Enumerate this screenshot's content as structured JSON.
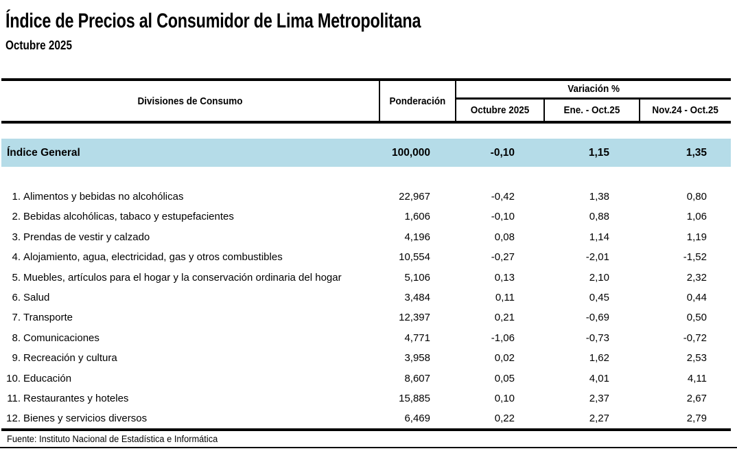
{
  "header": {
    "title": "Índice de Precios al Consumidor de Lima Metropolitana",
    "subtitle": "Octubre 2025"
  },
  "table": {
    "col_headers": {
      "divisiones": "Divisiones de Consumo",
      "ponderacion": "Ponderación",
      "variacion": "Variación %",
      "periods": [
        "Octubre 2025",
        "Ene. - Oct.25",
        "Nov.24 - Oct.25"
      ]
    },
    "index_general": {
      "label": "Índice General",
      "ponderacion": "100,000",
      "values": [
        "-0,10",
        "1,15",
        "1,35"
      ]
    },
    "rows": [
      {
        "num": "1.",
        "label": "Alimentos y bebidas no alcohólicas",
        "ponderacion": "22,967",
        "values": [
          "-0,42",
          "1,38",
          "0,80"
        ]
      },
      {
        "num": "2.",
        "label": "Bebidas alcohólicas, tabaco y estupefacientes",
        "ponderacion": "1,606",
        "values": [
          "-0,10",
          "0,88",
          "1,06"
        ]
      },
      {
        "num": "3.",
        "label": "Prendas de vestir y calzado",
        "ponderacion": "4,196",
        "values": [
          "0,08",
          "1,14",
          "1,19"
        ]
      },
      {
        "num": "4.",
        "label": "Alojamiento, agua, electricidad, gas y otros combustibles",
        "ponderacion": "10,554",
        "values": [
          "-0,27",
          "-2,01",
          "-1,52"
        ]
      },
      {
        "num": "5.",
        "label": "Muebles, artículos para el hogar y la conservación ordinaria del hogar",
        "ponderacion": "5,106",
        "values": [
          "0,13",
          "2,10",
          "2,32"
        ]
      },
      {
        "num": "6.",
        "label": "Salud",
        "ponderacion": "3,484",
        "values": [
          "0,11",
          "0,45",
          "0,44"
        ]
      },
      {
        "num": "7.",
        "label": "Transporte",
        "ponderacion": "12,397",
        "values": [
          "0,21",
          "-0,69",
          "0,50"
        ]
      },
      {
        "num": "8.",
        "label": "Comunicaciones",
        "ponderacion": "4,771",
        "values": [
          "-1,06",
          "-0,73",
          "-0,72"
        ]
      },
      {
        "num": "9.",
        "label": "Recreación y cultura",
        "ponderacion": "3,958",
        "values": [
          "0,02",
          "1,62",
          "2,53"
        ]
      },
      {
        "num": "10.",
        "label": "Educación",
        "ponderacion": "8,607",
        "values": [
          "0,05",
          "4,01",
          "4,11"
        ]
      },
      {
        "num": "11.",
        "label": "Restaurantes y hoteles",
        "ponderacion": "15,885",
        "values": [
          "0,10",
          "2,37",
          "2,67"
        ]
      },
      {
        "num": "12.",
        "label": "Bienes y servicios diversos",
        "ponderacion": "6,469",
        "values": [
          "0,22",
          "2,27",
          "2,79"
        ]
      }
    ]
  },
  "footer": {
    "source": "Fuente: Instituto Nacional de Estadística e Informática"
  },
  "colors": {
    "highlight": "#b5dce8",
    "line": "#000000"
  }
}
